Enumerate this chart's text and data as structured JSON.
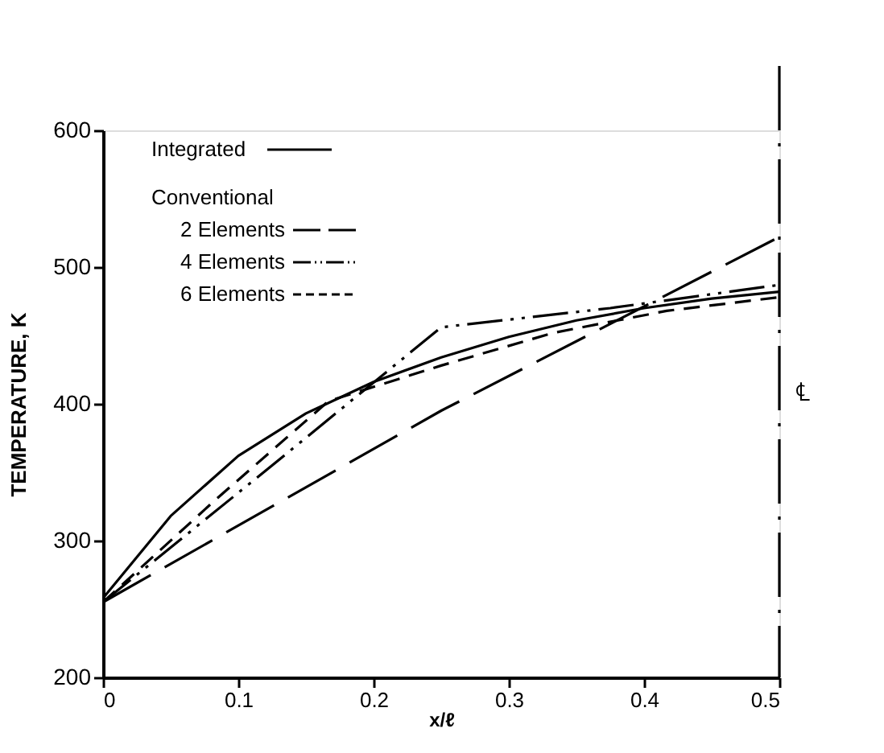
{
  "chart_data": {
    "type": "line",
    "xlabel": "x/ℓ",
    "ylabel": "TEMPERATURE, K",
    "xlim": [
      0,
      0.5
    ],
    "xticks": [
      0,
      0.1,
      0.2,
      0.3,
      0.4,
      0.5
    ],
    "ylim": [
      200,
      600
    ],
    "yticks": [
      200,
      300,
      400,
      500,
      600
    ],
    "grid": false,
    "legend": "top left",
    "legend_title": "Conventional",
    "series": [
      {
        "name": "Integrated",
        "color": "#000000",
        "line_style": "solid",
        "x": [
          0,
          0.05,
          0.1,
          0.15,
          0.2,
          0.25,
          0.3,
          0.35,
          0.4,
          0.45,
          0.5
        ],
        "values": [
          258,
          318,
          362,
          393,
          416,
          434,
          449,
          461,
          470,
          477,
          482
        ]
      },
      {
        "name": "2 Elements",
        "color": "#000000",
        "line_style": "long_dashed",
        "x": [
          0,
          0.25,
          0.5
        ],
        "values": [
          255,
          395,
          522
        ]
      },
      {
        "name": "4 Elements",
        "color": "#000000",
        "line_style": "dash_dot_dot",
        "x": [
          0,
          0.125,
          0.25,
          0.375,
          0.5
        ],
        "values": [
          255,
          355,
          456,
          470,
          487
        ]
      },
      {
        "name": "6 Elements",
        "color": "#000000",
        "line_style": "dashed",
        "x": [
          0,
          0.0833,
          0.1667,
          0.25,
          0.3333,
          0.4167,
          0.5
        ],
        "values": [
          255,
          330,
          402,
          428,
          452,
          468,
          478
        ]
      }
    ],
    "ref_lines": [
      {
        "axis": "x",
        "value": 0.5,
        "label": "℄",
        "color": "#000000",
        "line_style": "dash_dot"
      }
    ]
  }
}
